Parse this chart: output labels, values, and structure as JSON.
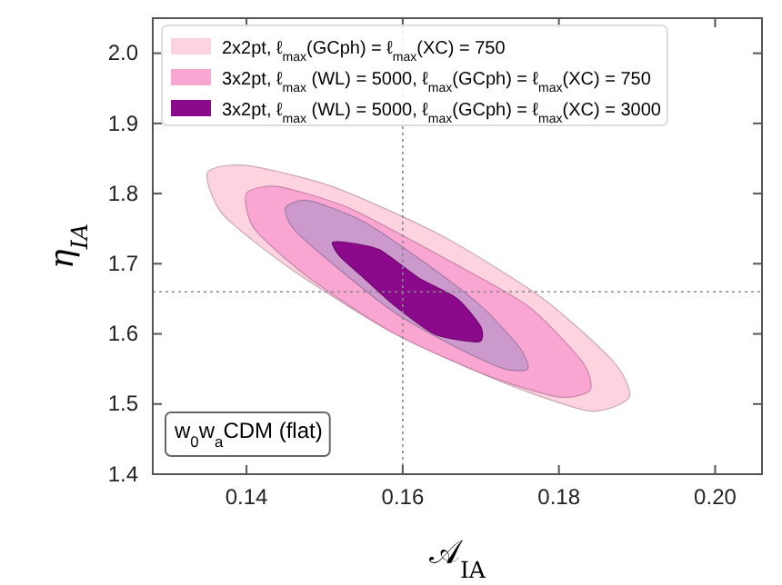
{
  "chart_data": {
    "type": "area",
    "xlabel": "𝒜$_{IA}$",
    "ylabel": "η$_{IA}$",
    "xlim": [
      0.128,
      0.206
    ],
    "ylim": [
      1.4,
      2.05
    ],
    "xticks": [
      {
        "value": 0.14,
        "label": "0.14"
      },
      {
        "value": 0.16,
        "label": "0.16"
      },
      {
        "value": 0.18,
        "label": "0.18"
      },
      {
        "value": 0.2,
        "label": "0.20"
      }
    ],
    "yticks": [
      {
        "value": 1.4,
        "label": "1.4"
      },
      {
        "value": 1.5,
        "label": "1.5"
      },
      {
        "value": 1.6,
        "label": "1.6"
      },
      {
        "value": 1.7,
        "label": "1.7"
      },
      {
        "value": 1.8,
        "label": "1.8"
      },
      {
        "value": 1.9,
        "label": "1.9"
      },
      {
        "value": 2.0,
        "label": "2.0"
      }
    ],
    "legend": "top left",
    "ref_lines": [
      {
        "axis": "x",
        "value": 0.16,
        "color": "#888888",
        "line_style": "dotted"
      },
      {
        "axis": "y",
        "value": 1.66,
        "color": "#888888",
        "line_style": "dotted"
      }
    ],
    "annotations": [
      "w$_{0}$w$_{a}$CDM (flat)"
    ],
    "series": [
      {
        "name": "2x2pt, ℓ$_{max}$(GCph) = ℓ$_{max}$(XC) = 750",
        "color": "#fcd3de",
        "x": [
          0.189,
          0.187,
          0.178,
          0.165,
          0.151,
          0.14,
          0.135,
          0.137,
          0.146,
          0.159,
          0.173,
          0.184
        ],
        "values": [
          1.51,
          1.56,
          1.65,
          1.74,
          1.81,
          1.84,
          1.83,
          1.77,
          1.69,
          1.6,
          1.53,
          1.49
        ]
      },
      {
        "name": "3x2pt, ℓ$_{max}$ (WL) = 5000, ℓ$_{max}$(GCph) = ℓ$_{max}$(XC) = 750",
        "color": "#f9a6d2",
        "x": [
          0.184,
          0.183,
          0.176,
          0.165,
          0.153,
          0.144,
          0.14,
          0.141,
          0.148,
          0.159,
          0.171,
          0.18
        ],
        "values": [
          1.52,
          1.56,
          1.64,
          1.71,
          1.78,
          1.81,
          1.8,
          1.75,
          1.68,
          1.6,
          1.54,
          1.51
        ]
      },
      {
        "color": "#cc99cc",
        "x": [
          0.176,
          0.175,
          0.17,
          0.163,
          0.155,
          0.148,
          0.145,
          0.146,
          0.151,
          0.159,
          0.167,
          0.173
        ],
        "values": [
          1.55,
          1.58,
          1.64,
          1.7,
          1.76,
          1.79,
          1.78,
          1.75,
          1.7,
          1.63,
          1.58,
          1.55
        ]
      },
      {
        "name": "3x2pt, ℓ$_{max}$ (WL) = 5000, ℓ$_{max}$(GCph) = ℓ$_{max}$(XC) = 3000",
        "color": "#8b0a8b",
        "x": [
          0.17,
          0.17,
          0.167,
          0.162,
          0.157,
          0.153,
          0.151,
          0.152,
          0.155,
          0.159,
          0.164,
          0.168
        ],
        "values": [
          1.59,
          1.61,
          1.65,
          1.68,
          1.72,
          1.73,
          1.73,
          1.71,
          1.68,
          1.64,
          1.6,
          1.59
        ]
      }
    ]
  }
}
